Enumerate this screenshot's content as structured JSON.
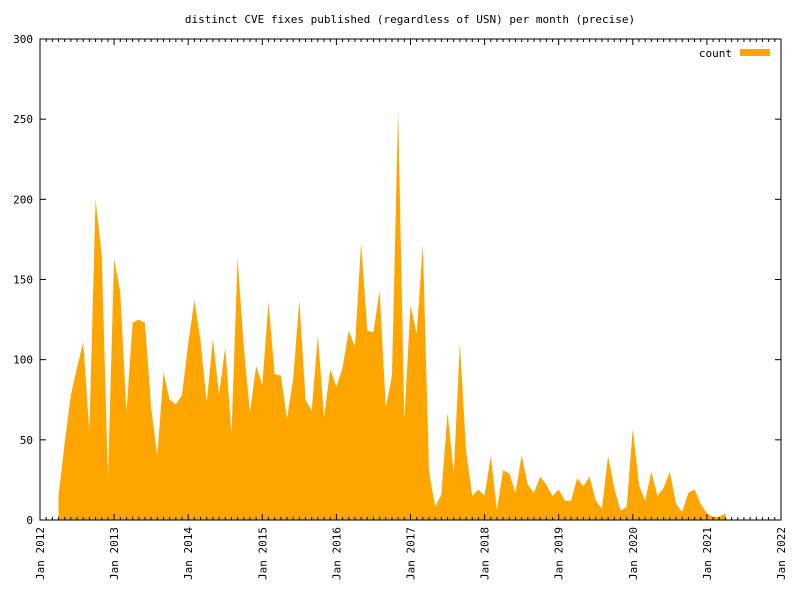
{
  "chart_data": {
    "type": "area",
    "title": "distinct CVE fixes published (regardless of USN) per month (precise)",
    "xlabel": "",
    "ylabel": "",
    "xlim": [
      "2012-01",
      "2022-01"
    ],
    "ylim": [
      0,
      300
    ],
    "y_ticks": [
      0,
      50,
      100,
      150,
      200,
      250,
      300
    ],
    "x_ticks": [
      "Jan 2012",
      "Jan 2013",
      "Jan 2014",
      "Jan 2015",
      "Jan 2016",
      "Jan 2017",
      "Jan 2018",
      "Jan 2019",
      "Jan 2020",
      "Jan 2021",
      "Jan 2022"
    ],
    "grid": false,
    "legend_position": "top-right",
    "series": [
      {
        "name": "count",
        "color": "#ffa500",
        "x": [
          "2012-04",
          "2012-05",
          "2012-06",
          "2012-07",
          "2012-08",
          "2012-09",
          "2012-10",
          "2012-11",
          "2012-12",
          "2013-01",
          "2013-02",
          "2013-03",
          "2013-04",
          "2013-05",
          "2013-06",
          "2013-07",
          "2013-08",
          "2013-09",
          "2013-10",
          "2013-11",
          "2013-12",
          "2014-01",
          "2014-02",
          "2014-03",
          "2014-04",
          "2014-05",
          "2014-06",
          "2014-07",
          "2014-08",
          "2014-09",
          "2014-10",
          "2014-11",
          "2014-12",
          "2015-01",
          "2015-02",
          "2015-03",
          "2015-04",
          "2015-05",
          "2015-06",
          "2015-07",
          "2015-08",
          "2015-09",
          "2015-10",
          "2015-11",
          "2015-12",
          "2016-01",
          "2016-02",
          "2016-03",
          "2016-04",
          "2016-05",
          "2016-06",
          "2016-07",
          "2016-08",
          "2016-09",
          "2016-10",
          "2016-11",
          "2016-12",
          "2017-01",
          "2017-02",
          "2017-03",
          "2017-04",
          "2017-05",
          "2017-06",
          "2017-07",
          "2017-08",
          "2017-09",
          "2017-10",
          "2017-11",
          "2017-12",
          "2018-01",
          "2018-02",
          "2018-03",
          "2018-04",
          "2018-05",
          "2018-06",
          "2018-07",
          "2018-08",
          "2018-09",
          "2018-10",
          "2018-11",
          "2018-12",
          "2019-01",
          "2019-02",
          "2019-03",
          "2019-04",
          "2019-05",
          "2019-06",
          "2019-07",
          "2019-08",
          "2019-09",
          "2019-10",
          "2019-11",
          "2019-12",
          "2020-01",
          "2020-02",
          "2020-03",
          "2020-04",
          "2020-05",
          "2020-06",
          "2020-07",
          "2020-08",
          "2020-09",
          "2020-10",
          "2020-11",
          "2020-12",
          "2021-01",
          "2021-02",
          "2021-03",
          "2021-04"
        ],
        "values": [
          15,
          48,
          78,
          95,
          111,
          55,
          200,
          165,
          26,
          163,
          142,
          67,
          123,
          125,
          123,
          70,
          40,
          92,
          75,
          72,
          78,
          110,
          137,
          112,
          73,
          113,
          78,
          108,
          53,
          163,
          108,
          67,
          96,
          84,
          136,
          91,
          90,
          63,
          88,
          137,
          75,
          68,
          115,
          64,
          94,
          83,
          95,
          118,
          108,
          173,
          118,
          117,
          143,
          70,
          90,
          256,
          62,
          134,
          116,
          172,
          30,
          8,
          16,
          67,
          29,
          110,
          43,
          15,
          19,
          15,
          40,
          6,
          31,
          29,
          17,
          40,
          22,
          17,
          27,
          22,
          15,
          19,
          12,
          12,
          26,
          21,
          27,
          12,
          7,
          40,
          20,
          6,
          8,
          57,
          22,
          12,
          30,
          15,
          20,
          30,
          10,
          5,
          17,
          19,
          10,
          4,
          2,
          2,
          4
        ]
      }
    ]
  }
}
